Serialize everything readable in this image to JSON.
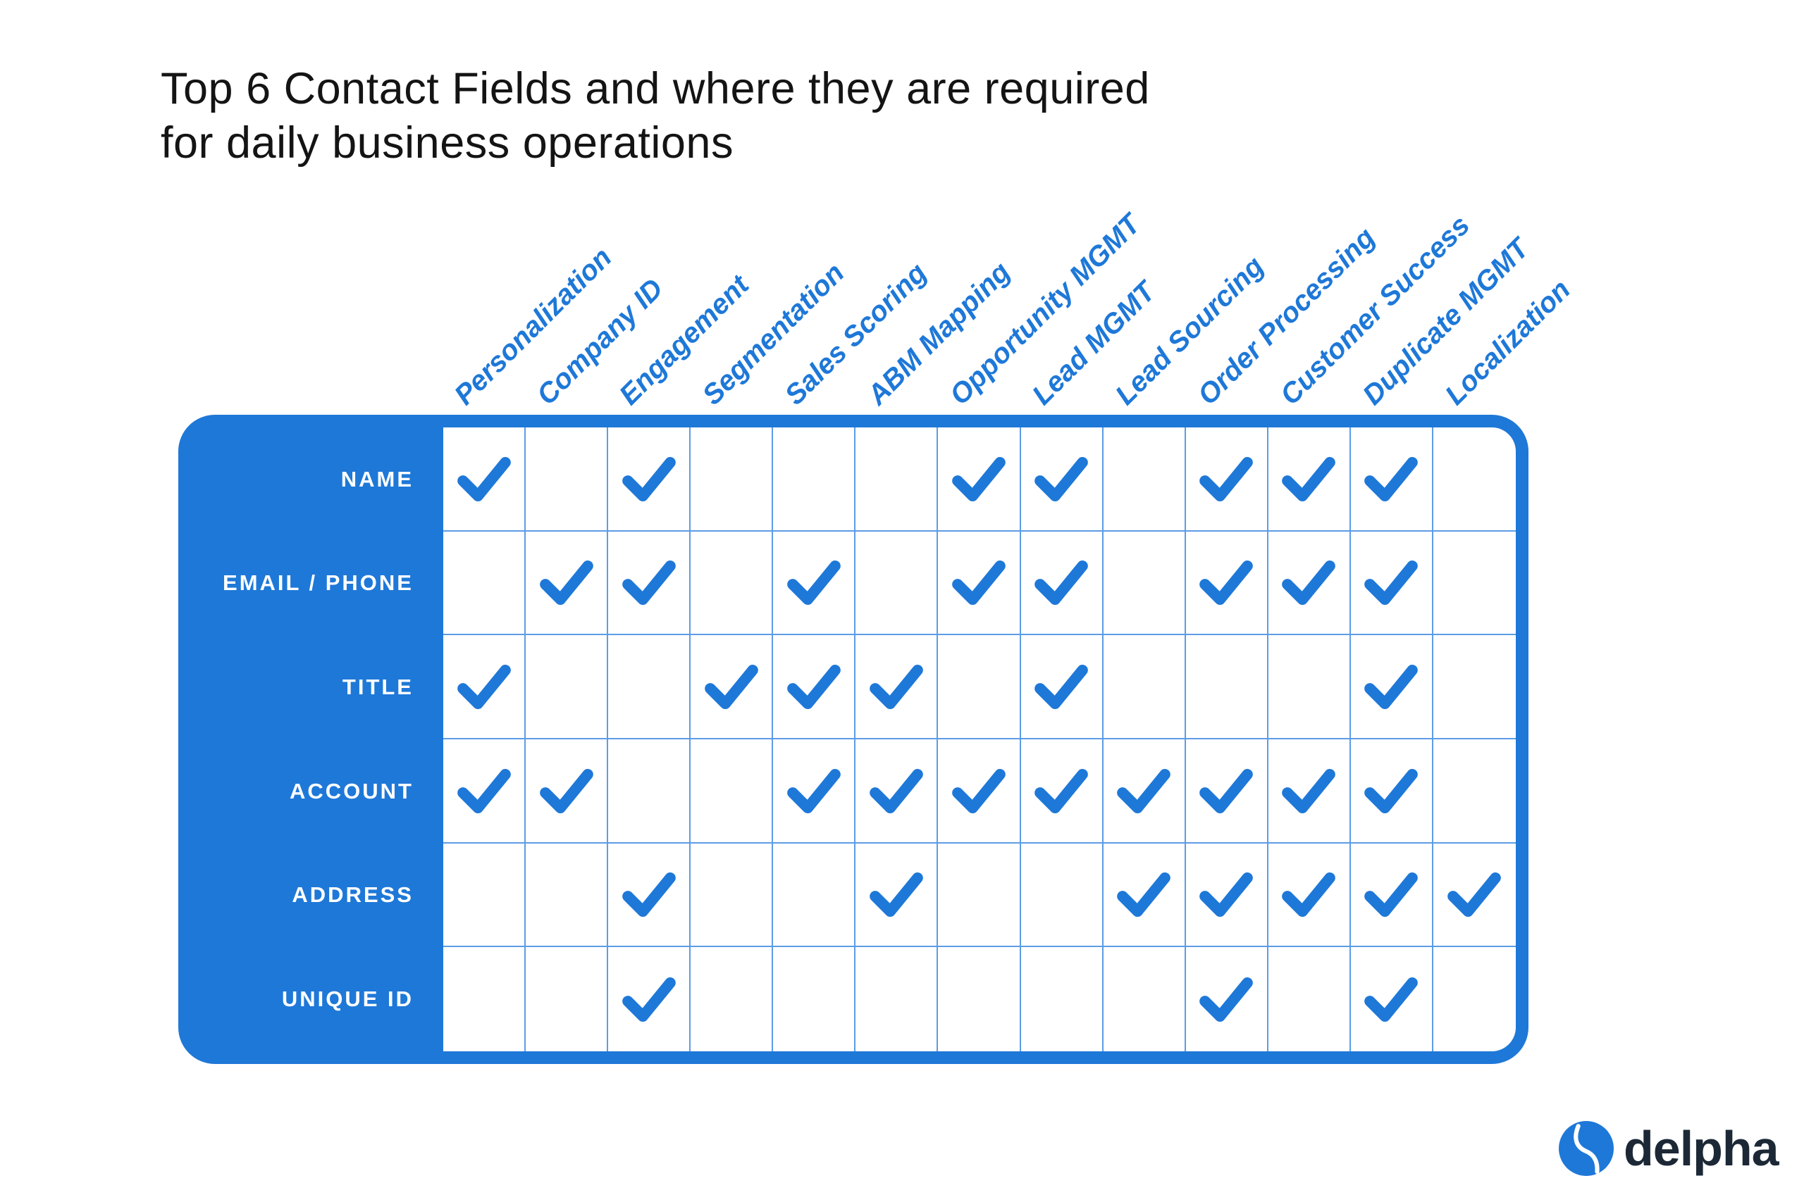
{
  "title": {
    "line1": "Top 6 Contact Fields and where they are required",
    "line2": "for daily business operations"
  },
  "chart_data": {
    "type": "table",
    "title": "Top 6 Contact Fields and where they are required for daily business operations",
    "columns": [
      "Personalization",
      "Company ID",
      "Engagement",
      "Segmentation",
      "Sales Scoring",
      "ABM Mapping",
      "Opportunity MGMT",
      "Lead MGMT",
      "Lead Sourcing",
      "Order Processing",
      "Customer Success",
      "Duplicate MGMT",
      "Localization"
    ],
    "rows": [
      {
        "label": "NAME",
        "checks": [
          1,
          0,
          1,
          0,
          0,
          0,
          1,
          1,
          0,
          1,
          1,
          1,
          0
        ]
      },
      {
        "label": "EMAIL / PHONE",
        "checks": [
          0,
          1,
          1,
          0,
          1,
          0,
          1,
          1,
          0,
          1,
          1,
          1,
          0
        ]
      },
      {
        "label": "TITLE",
        "checks": [
          1,
          0,
          0,
          1,
          1,
          1,
          0,
          1,
          0,
          0,
          0,
          1,
          0
        ]
      },
      {
        "label": "ACCOUNT",
        "checks": [
          1,
          1,
          0,
          0,
          1,
          1,
          1,
          1,
          1,
          1,
          1,
          1,
          0
        ]
      },
      {
        "label": "ADDRESS",
        "checks": [
          0,
          0,
          1,
          0,
          0,
          1,
          0,
          0,
          1,
          1,
          1,
          1,
          1
        ]
      },
      {
        "label": "UNIQUE ID",
        "checks": [
          0,
          0,
          1,
          0,
          0,
          0,
          0,
          0,
          0,
          1,
          0,
          1,
          0
        ]
      }
    ],
    "cell_mark": "check",
    "legend_position": "none",
    "grid": true
  },
  "logo": {
    "text": "delpha"
  },
  "colors": {
    "accent": "#1e78d8",
    "grid_line": "#5c9ce6",
    "title_color": "#141414",
    "logo_text": "#1c2836",
    "row_label_text": "#ffffff",
    "matrix_background": "#ffffff"
  }
}
